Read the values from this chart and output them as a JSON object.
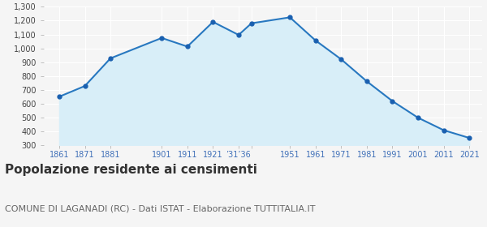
{
  "years": [
    1861,
    1871,
    1881,
    1901,
    1911,
    1921,
    1931,
    1936,
    1951,
    1961,
    1971,
    1981,
    1991,
    2001,
    2011,
    2021
  ],
  "population": [
    651,
    728,
    928,
    1075,
    1013,
    1191,
    1097,
    1181,
    1224,
    1057,
    921,
    762,
    619,
    499,
    409,
    353
  ],
  "line_color": "#2878c0",
  "fill_color": "#d8eef8",
  "marker_color": "#1a60b0",
  "background_color": "#f5f5f5",
  "grid_color": "#ffffff",
  "title": "Popolazione residente ai censimenti",
  "subtitle": "COMUNE DI LAGANADI (RC) - Dati ISTAT - Elaborazione TUTTITALIA.IT",
  "ylim": [
    300,
    1300
  ],
  "yticks": [
    300,
    400,
    500,
    600,
    700,
    800,
    900,
    1000,
    1100,
    1200,
    1300
  ],
  "title_fontsize": 11,
  "subtitle_fontsize": 8,
  "axis_tick_color": "#4070b8",
  "y_label_color": "#444444",
  "title_color": "#333333",
  "subtitle_color": "#666666"
}
